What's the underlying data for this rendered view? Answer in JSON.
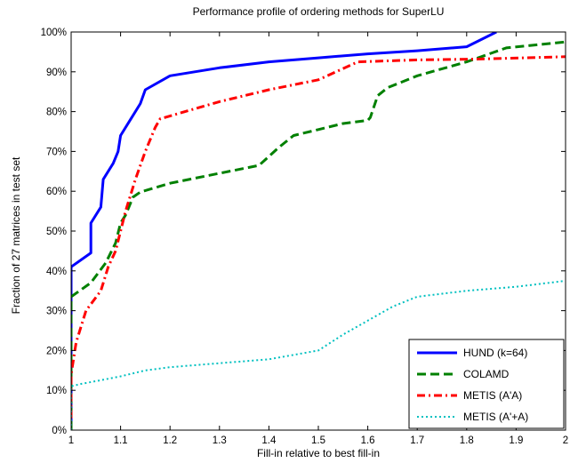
{
  "chart_data": {
    "type": "line",
    "title": "Performance profile of ordering methods for SuperLU",
    "xlabel": "Fill-in relative to best fill-in",
    "ylabel": "Fraction of 27 matrices in test set",
    "xlim": [
      1,
      2
    ],
    "ylim": [
      0,
      100
    ],
    "x_ticks": [
      1,
      1.1,
      1.2,
      1.3,
      1.4,
      1.5,
      1.6,
      1.7,
      1.8,
      1.9,
      2
    ],
    "x_tick_labels": [
      "1",
      "1.1",
      "1.2",
      "1.3",
      "1.4",
      "1.5",
      "1.6",
      "1.7",
      "1.8",
      "1.9",
      "2"
    ],
    "y_ticks": [
      0,
      10,
      20,
      30,
      40,
      50,
      60,
      70,
      80,
      90,
      100
    ],
    "y_tick_labels": [
      "0%",
      "10%",
      "20%",
      "30%",
      "40%",
      "50%",
      "60%",
      "70%",
      "80%",
      "90%",
      "100%"
    ],
    "grid": false,
    "legend_position": "bottom-right",
    "series": [
      {
        "name": "HUND (k=64)",
        "color": "#0000ff",
        "dash": "solid",
        "points": [
          [
            1,
            0
          ],
          [
            1,
            41
          ],
          [
            1.04,
            44.5
          ],
          [
            1.04,
            52
          ],
          [
            1.06,
            56
          ],
          [
            1.065,
            63
          ],
          [
            1.085,
            67
          ],
          [
            1.095,
            70
          ],
          [
            1.1,
            74
          ],
          [
            1.12,
            78
          ],
          [
            1.14,
            82
          ],
          [
            1.15,
            85.5
          ],
          [
            1.2,
            89
          ],
          [
            1.3,
            91
          ],
          [
            1.4,
            92.5
          ],
          [
            1.5,
            93.5
          ],
          [
            1.6,
            94.5
          ],
          [
            1.7,
            95.3
          ],
          [
            1.8,
            96.3
          ],
          [
            1.86,
            100
          ]
        ]
      },
      {
        "name": "COLAMD",
        "color": "#008000",
        "dash": "dashed",
        "points": [
          [
            1,
            0
          ],
          [
            1,
            33.5
          ],
          [
            1.04,
            37
          ],
          [
            1.07,
            42
          ],
          [
            1.09,
            47
          ],
          [
            1.1,
            52
          ],
          [
            1.11,
            54
          ],
          [
            1.125,
            58.5
          ],
          [
            1.14,
            59.8
          ],
          [
            1.2,
            62
          ],
          [
            1.3,
            64.5
          ],
          [
            1.38,
            66.5
          ],
          [
            1.42,
            71
          ],
          [
            1.45,
            74
          ],
          [
            1.5,
            75.5
          ],
          [
            1.55,
            77
          ],
          [
            1.6,
            77.8
          ],
          [
            1.605,
            78.5
          ],
          [
            1.62,
            84
          ],
          [
            1.64,
            86
          ],
          [
            1.7,
            89
          ],
          [
            1.8,
            92.5
          ],
          [
            1.88,
            96
          ],
          [
            2,
            97.5
          ]
        ]
      },
      {
        "name": "METIS (A'A)",
        "color": "#ff0000",
        "dash": "dashdot",
        "points": [
          [
            1,
            3
          ],
          [
            1,
            14
          ],
          [
            1.01,
            22
          ],
          [
            1.03,
            30
          ],
          [
            1.06,
            35
          ],
          [
            1.075,
            41
          ],
          [
            1.09,
            45
          ],
          [
            1.1,
            50
          ],
          [
            1.11,
            55
          ],
          [
            1.13,
            63
          ],
          [
            1.15,
            70
          ],
          [
            1.17,
            76
          ],
          [
            1.18,
            78.2
          ],
          [
            1.3,
            82.5
          ],
          [
            1.4,
            85.5
          ],
          [
            1.5,
            88
          ],
          [
            1.58,
            92.5
          ],
          [
            1.7,
            93
          ],
          [
            1.82,
            93.2
          ],
          [
            2,
            93.8
          ]
        ]
      },
      {
        "name": "METIS (A'+A)",
        "color": "#00c0c0",
        "dash": "dotted",
        "points": [
          [
            1,
            0
          ],
          [
            1,
            11
          ],
          [
            1.02,
            11.6
          ],
          [
            1.05,
            12.3
          ],
          [
            1.1,
            13.5
          ],
          [
            1.15,
            15
          ],
          [
            1.2,
            15.8
          ],
          [
            1.3,
            16.8
          ],
          [
            1.4,
            17.8
          ],
          [
            1.5,
            20
          ],
          [
            1.55,
            24
          ],
          [
            1.6,
            27.5
          ],
          [
            1.65,
            31
          ],
          [
            1.7,
            33.5
          ],
          [
            1.8,
            35
          ],
          [
            1.9,
            36
          ],
          [
            2,
            37.5
          ]
        ]
      }
    ]
  }
}
